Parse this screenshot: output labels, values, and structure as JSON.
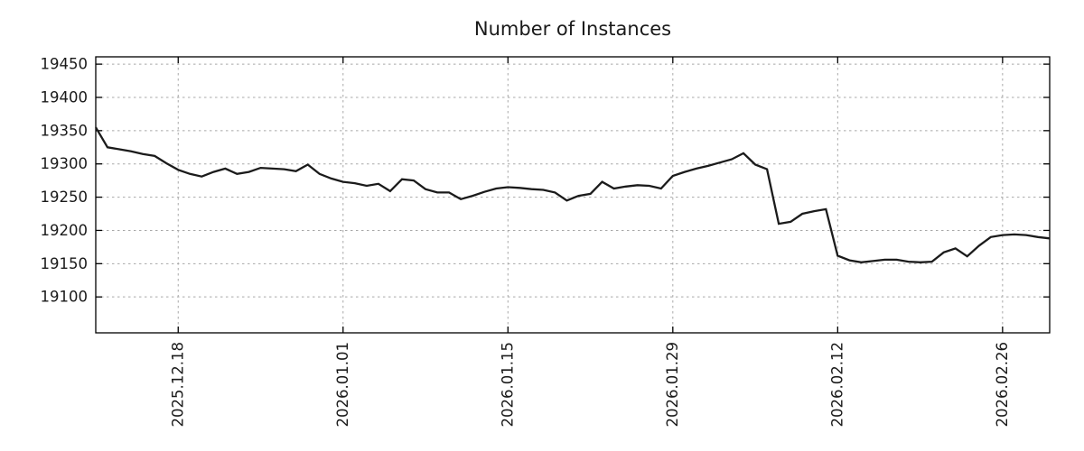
{
  "title": "Number of Instances",
  "colors": {
    "line": "#1b1b1b",
    "grid": "#a8a8a8",
    "border": "#000000",
    "text": "#1a1a1a",
    "background": "#ffffff"
  },
  "chart_data": {
    "type": "line",
    "title": "Number of Instances",
    "xlabel": "",
    "ylabel": "",
    "legend": "none",
    "grid": true,
    "grid_style": "dashed",
    "x_start_date": "2025.12.11",
    "x_end_date": "2026.03.02",
    "x_tick_labels": [
      "2025.12.18",
      "2026.01.01",
      "2026.01.15",
      "2026.01.29",
      "2026.02.12",
      "2026.02.26"
    ],
    "x_tick_day_indices": [
      7,
      21,
      35,
      49,
      63,
      77
    ],
    "y_ticks": [
      19100,
      19150,
      19200,
      19250,
      19300,
      19350,
      19400,
      19450
    ],
    "ylim": [
      19046,
      19461
    ],
    "values": [
      19355,
      19325,
      19322,
      19319,
      19315,
      19312,
      19301,
      19291,
      19285,
      19281,
      19288,
      19293,
      19285,
      19288,
      19294,
      19293,
      19292,
      19289,
      19299,
      19285,
      19278,
      19273,
      19271,
      19267,
      19270,
      19259,
      19277,
      19275,
      19262,
      19257,
      19257,
      19247,
      19252,
      19258,
      19263,
      19265,
      19264,
      19262,
      19261,
      19257,
      19245,
      19252,
      19255,
      19273,
      19263,
      19266,
      19268,
      19267,
      19263,
      19282,
      19288,
      19293,
      19297,
      19302,
      19307,
      19316,
      19299,
      19292,
      19210,
      19213,
      19225,
      19229,
      19232,
      19162,
      19155,
      19152,
      19154,
      19156,
      19156,
      19153,
      19152,
      19153,
      19167,
      19173,
      19161,
      19177,
      19190,
      19193,
      19194,
      19193,
      19190,
      19188
    ]
  }
}
